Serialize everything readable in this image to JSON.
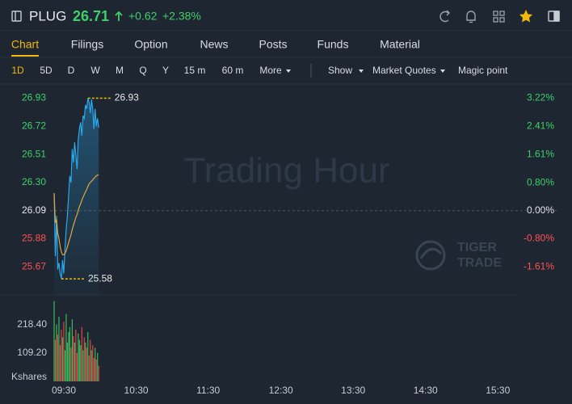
{
  "header": {
    "symbol": "PLUG",
    "price": "26.71",
    "change": "+0.62",
    "change_pct": "+2.38%"
  },
  "tabs": [
    "Chart",
    "Filings",
    "Option",
    "News",
    "Posts",
    "Funds",
    "Material"
  ],
  "periods": [
    "1D",
    "5D",
    "D",
    "W",
    "M",
    "Q",
    "Y",
    "15 m",
    "60 m",
    "More"
  ],
  "tools": [
    "Show",
    "Market Quotes",
    "Magic point"
  ],
  "chart_data": {
    "type": "line",
    "watermark": "Trading Hour",
    "logo": [
      "TIGER",
      "TRADE"
    ],
    "x": [
      "09:30",
      "09:31",
      "09:32",
      "09:33",
      "09:34",
      "09:35",
      "09:36",
      "09:37",
      "09:38",
      "09:39",
      "09:40",
      "09:41",
      "09:42",
      "09:43",
      "09:44",
      "09:45",
      "09:46",
      "09:47",
      "09:48",
      "09:49",
      "09:50",
      "09:51",
      "09:52",
      "09:53",
      "09:54",
      "09:55",
      "09:56",
      "09:57",
      "09:58",
      "09:59",
      "10:00",
      "10:01",
      "10:02",
      "10:03",
      "10:04",
      "10:05",
      "10:06",
      "10:07"
    ],
    "xlim": [
      "09:30",
      "16:00"
    ],
    "xticks": [
      "09:30",
      "10:30",
      "11:30",
      "12:30",
      "13:30",
      "14:30",
      "15:30"
    ],
    "ylim": [
      25.46,
      27.03
    ],
    "yticks": [
      26.93,
      26.72,
      26.51,
      {
        "value": 26.3,
        "label": "26.30"
      },
      26.09,
      25.88,
      25.67
    ],
    "y2lim": [
      -2.41,
      3.6
    ],
    "y2ticks": [
      {
        "value": 3.22,
        "label": "3.22%"
      },
      {
        "value": 2.41,
        "label": "2.41%"
      },
      {
        "value": 1.61,
        "label": "1.61%"
      },
      {
        "value": 0.8,
        "label": "0.80%"
      },
      {
        "value": 0,
        "label": "0.00%"
      },
      {
        "value": -0.8,
        "label": "-0.80%"
      },
      {
        "value": -1.61,
        "label": "-1.61%"
      }
    ],
    "series": [
      {
        "color": "#2aa8ec",
        "values": [
          26.22,
          25.75,
          26.05,
          25.65,
          25.7,
          25.62,
          25.58,
          25.72,
          25.62,
          25.8,
          25.95,
          26.05,
          26.2,
          26.35,
          26.3,
          26.55,
          26.45,
          26.6,
          26.5,
          26.4,
          26.62,
          26.7,
          26.75,
          26.65,
          26.8,
          26.78,
          26.88,
          26.85,
          26.93,
          26.9,
          26.82,
          26.92,
          26.85,
          26.7,
          26.85,
          26.72,
          26.78,
          26.71
        ]
      },
      {
        "color": "#e3a53b",
        "values": [
          26.22,
          26.0,
          26.02,
          25.92,
          25.88,
          25.82,
          25.78,
          25.76,
          25.76,
          25.77,
          25.79,
          25.82,
          25.85,
          25.88,
          25.91,
          25.95,
          25.98,
          26.01,
          26.04,
          26.06,
          26.09,
          26.12,
          26.14,
          26.17,
          26.19,
          26.21,
          26.23,
          26.25,
          26.27,
          26.29,
          26.3,
          26.31,
          26.32,
          26.33,
          26.34,
          26.35,
          26.355,
          26.36
        ]
      }
    ],
    "high": 26.93,
    "low": 25.58,
    "annotation_color": "#f0b90b",
    "volume": {
      "values": [
        310,
        160,
        220,
        180,
        250,
        140,
        200,
        170,
        230,
        120,
        260,
        150,
        190,
        210,
        130,
        240,
        175,
        150,
        200,
        110,
        185,
        160,
        140,
        210,
        120,
        170,
        150,
        130,
        190,
        100,
        160,
        120,
        140,
        90,
        130,
        85,
        110,
        60
      ],
      "ylim": [
        0,
        318
      ],
      "yticks": [
        {
          "value": 218.4,
          "label": "218.40"
        },
        {
          "value": 109.2,
          "label": "109.20"
        }
      ],
      "unit": "Kshares",
      "up_color": "#3cb95a",
      "down_color": "#e04747"
    }
  }
}
